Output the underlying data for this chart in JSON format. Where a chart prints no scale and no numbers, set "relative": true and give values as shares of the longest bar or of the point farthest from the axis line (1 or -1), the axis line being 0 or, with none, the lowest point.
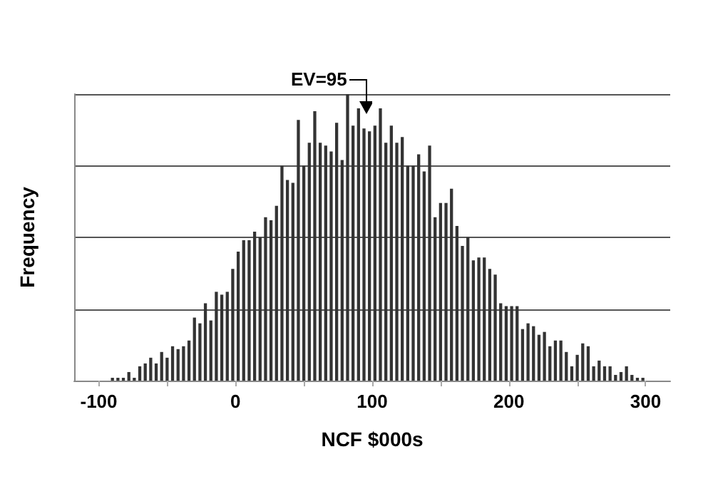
{
  "chart_data": {
    "type": "bar",
    "xlabel": "NCF $000s",
    "ylabel": "Frequency",
    "relative": true,
    "grid": "y",
    "color": "#333333",
    "x": [
      -90,
      -86,
      -82,
      -78,
      -74,
      -70,
      -66,
      -62,
      -58,
      -54,
      -50,
      -46,
      -42,
      -38,
      -34,
      -30,
      -26,
      -22,
      -18,
      -14,
      -10,
      -6,
      -2,
      2,
      6,
      10,
      14,
      18,
      22,
      26,
      30,
      34,
      38,
      42,
      46,
      50,
      54,
      58,
      62,
      66,
      70,
      74,
      78,
      82,
      86,
      90,
      94,
      98,
      102,
      106,
      110,
      114,
      118,
      122,
      126,
      130,
      134,
      138,
      142,
      146,
      150,
      154,
      158,
      162,
      166,
      170,
      174,
      178,
      182,
      186,
      190,
      194,
      198,
      202,
      206,
      210,
      214,
      218,
      222,
      226,
      230,
      234,
      238,
      242,
      246,
      250,
      254,
      258,
      262,
      266,
      270,
      274,
      278,
      282,
      286,
      290,
      294,
      298
    ],
    "values": [
      0.01,
      0.01,
      0.01,
      0.03,
      0.01,
      0.05,
      0.06,
      0.08,
      0.06,
      0.1,
      0.08,
      0.12,
      0.11,
      0.12,
      0.14,
      0.22,
      0.2,
      0.27,
      0.21,
      0.31,
      0.3,
      0.31,
      0.39,
      0.45,
      0.49,
      0.49,
      0.52,
      0.5,
      0.57,
      0.56,
      0.61,
      0.75,
      0.7,
      0.69,
      0.91,
      0.75,
      0.83,
      0.94,
      0.83,
      0.82,
      0.8,
      0.9,
      0.77,
      1,
      0.89,
      0.95,
      0.88,
      0.87,
      0.89,
      0.95,
      0.83,
      0.89,
      0.83,
      0.85,
      0.75,
      0.75,
      0.79,
      0.73,
      0.82,
      0.57,
      0.62,
      0.62,
      0.67,
      0.54,
      0.47,
      0.5,
      0.42,
      0.43,
      0.43,
      0.39,
      0.37,
      0.27,
      0.26,
      0.26,
      0.26,
      0.18,
      0.2,
      0.19,
      0.16,
      0.17,
      0.12,
      0.14,
      0.14,
      0.1,
      0.05,
      0.09,
      0.13,
      0.12,
      0.05,
      0.07,
      0.05,
      0.05,
      0.02,
      0.03,
      0.05,
      0.02,
      0.01,
      0.01
    ],
    "xlim": [
      -118,
      318
    ],
    "xticks": [
      -100,
      {
        "value": -50,
        "label": null
      },
      0,
      {
        "value": 50,
        "label": null
      },
      100,
      {
        "value": 150,
        "label": null
      },
      200,
      {
        "value": 250,
        "label": null
      },
      300
    ],
    "annotations": [
      "EV=95"
    ]
  }
}
